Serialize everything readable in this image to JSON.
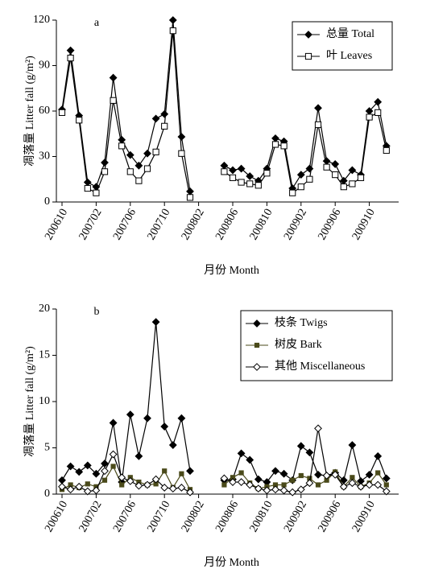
{
  "chart_data": [
    {
      "type": "line",
      "label": "a",
      "ylabel": "凋落量 Litter fall (g/m²)",
      "xlabel": "月份 Month",
      "categories": [
        "200610",
        null,
        null,
        null,
        "200702",
        null,
        null,
        null,
        "200706",
        null,
        null,
        null,
        "200710",
        null,
        null,
        null,
        "200802",
        null,
        null,
        null,
        "200806",
        null,
        null,
        null,
        "200810",
        null,
        null,
        null,
        "200902",
        null,
        null,
        null,
        "200906",
        null,
        null,
        null,
        "200910",
        null,
        null
      ],
      "series": [
        {
          "name": "总量 Total",
          "color": "#000000",
          "marker": "diamond-filled",
          "values": [
            61,
            100,
            57,
            13,
            10,
            26,
            82,
            41,
            31,
            24,
            32,
            55,
            58,
            120,
            43,
            7,
            null,
            null,
            null,
            24,
            21,
            22,
            17,
            14,
            22,
            42,
            40,
            9,
            18,
            22,
            62,
            27,
            25,
            14,
            21,
            18,
            60,
            66,
            37
          ]
        },
        {
          "name": "叶 Leaves",
          "color": "#000000",
          "marker": "square-open",
          "values": [
            59,
            95,
            54,
            9,
            6,
            20,
            67,
            37,
            20,
            14,
            22,
            33,
            50,
            113,
            32,
            3,
            null,
            null,
            null,
            20,
            16,
            13,
            12,
            11,
            19,
            38,
            37,
            6,
            10,
            15,
            51,
            23,
            18,
            10,
            12,
            16,
            56,
            59,
            34
          ]
        }
      ],
      "ylim": [
        0,
        120
      ],
      "yticks": [
        0,
        30,
        60,
        90,
        120
      ],
      "legend": "upper right"
    },
    {
      "type": "line",
      "label": "b",
      "ylabel": "凋落量 Litter fall (g/m²)",
      "xlabel": "月份 Month",
      "categories": [
        "200610",
        null,
        null,
        null,
        "200702",
        null,
        null,
        null,
        "200706",
        null,
        null,
        null,
        "200710",
        null,
        null,
        null,
        "200802",
        null,
        null,
        null,
        "200806",
        null,
        null,
        null,
        "200810",
        null,
        null,
        null,
        "200902",
        null,
        null,
        null,
        "200906",
        null,
        null,
        null,
        "200910",
        null,
        null
      ],
      "series": [
        {
          "name": "枝条 Twigs",
          "color": "#000000",
          "marker": "diamond-filled",
          "values": [
            1.5,
            3.0,
            2.4,
            3.1,
            2.2,
            3.3,
            7.7,
            1.3,
            8.6,
            4.1,
            8.2,
            18.6,
            7.3,
            5.3,
            8.2,
            2.5,
            null,
            null,
            null,
            1.5,
            1.6,
            4.4,
            3.7,
            1.6,
            1.3,
            2.5,
            2.2,
            1.5,
            5.2,
            4.5,
            2.1,
            2.0,
            2.3,
            1.5,
            5.3,
            1.4,
            2.1,
            4.1,
            1.7
          ]
        },
        {
          "name": "树皮 Bark",
          "color": "#4a4a1a",
          "marker": "square-filled",
          "values": [
            0.5,
            1.0,
            0.7,
            1.1,
            0.8,
            1.5,
            3.0,
            1.0,
            1.8,
            1.3,
            1.0,
            1.1,
            2.5,
            0.7,
            2.2,
            0.5,
            null,
            null,
            null,
            1.0,
            1.8,
            2.3,
            1.2,
            0.6,
            0.8,
            1.0,
            1.0,
            1.5,
            2.0,
            1.7,
            1.0,
            1.5,
            2.4,
            0.8,
            1.8,
            0.8,
            1.2,
            2.3,
            1.0
          ]
        },
        {
          "name": "其他 Miscellaneous",
          "color": "#000000",
          "marker": "diamond-open",
          "values": [
            0.8,
            0.5,
            0.8,
            0.3,
            0.4,
            2.5,
            4.3,
            1.8,
            1.4,
            0.9,
            1.0,
            1.6,
            0.7,
            0.6,
            0.7,
            0.2,
            null,
            null,
            null,
            1.7,
            1.3,
            1.3,
            1.0,
            0.6,
            0.4,
            0.5,
            0.4,
            0.2,
            0.5,
            1.2,
            7.1,
            2.0,
            2.1,
            0.8,
            1.2,
            0.8,
            1.0,
            1.0,
            0.3
          ]
        }
      ],
      "ylim": [
        0,
        20
      ],
      "yticks": [
        0,
        5,
        10,
        15,
        20
      ],
      "legend": "upper right"
    }
  ]
}
